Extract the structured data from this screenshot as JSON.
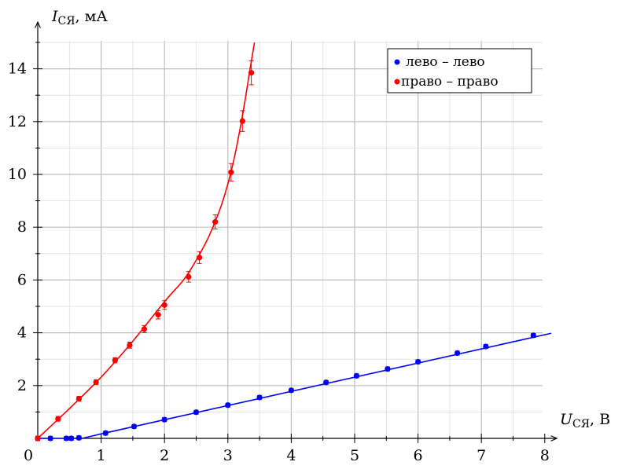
{
  "chart_data": {
    "type": "scatter",
    "xlabel": "U",
    "xlabel_sub": "СЯ",
    "xlabel_unit": ", В",
    "ylabel": "I",
    "ylabel_sub": "СЯ",
    "ylabel_unit": ", мА",
    "origin_label": "0",
    "xlim": [
      0,
      8.1
    ],
    "ylim": [
      0,
      15
    ],
    "x_ticks": [
      1,
      2,
      3,
      4,
      5,
      6,
      7,
      8
    ],
    "x_tick_labels": [
      "1",
      "2",
      "3",
      "4",
      "5",
      "6",
      "7",
      "8"
    ],
    "y_ticks": [
      2,
      4,
      6,
      8,
      10,
      12,
      14
    ],
    "y_tick_labels": [
      "2",
      "4",
      "6",
      "8",
      "10",
      "12",
      "14"
    ],
    "grid": true,
    "legend_position": "top-right",
    "series": [
      {
        "name": "лево – лево",
        "color": "#0000ff",
        "points": [
          {
            "x": 0.0,
            "y": 0.0
          },
          {
            "x": 0.2,
            "y": 0.0
          },
          {
            "x": 0.45,
            "y": 0.0
          },
          {
            "x": 0.53,
            "y": 0.0
          },
          {
            "x": 0.65,
            "y": 0.02
          },
          {
            "x": 1.07,
            "y": 0.2
          },
          {
            "x": 1.52,
            "y": 0.45
          },
          {
            "x": 2.0,
            "y": 0.71
          },
          {
            "x": 2.5,
            "y": 0.99
          },
          {
            "x": 3.0,
            "y": 1.26
          },
          {
            "x": 3.5,
            "y": 1.55
          },
          {
            "x": 4.0,
            "y": 1.82
          },
          {
            "x": 4.55,
            "y": 2.12
          },
          {
            "x": 5.03,
            "y": 2.37
          },
          {
            "x": 5.52,
            "y": 2.63
          },
          {
            "x": 6.0,
            "y": 2.9
          },
          {
            "x": 6.62,
            "y": 3.23
          },
          {
            "x": 7.07,
            "y": 3.48
          },
          {
            "x": 7.82,
            "y": 3.9
          }
        ],
        "fit": [
          {
            "x": 0.0,
            "y": 0.0
          },
          {
            "x": 0.7,
            "y": 0.0
          },
          {
            "x": 1.0,
            "y": 0.17
          },
          {
            "x": 8.1,
            "y": 3.98
          }
        ]
      },
      {
        "name": "право – право",
        "color": "#ff0000",
        "points": [
          {
            "x": 0.0,
            "y": 0.0
          },
          {
            "x": 0.32,
            "y": 0.74
          },
          {
            "x": 0.65,
            "y": 1.5
          },
          {
            "x": 0.92,
            "y": 2.13
          },
          {
            "x": 1.22,
            "y": 2.96
          },
          {
            "x": 1.45,
            "y": 3.53
          },
          {
            "x": 1.68,
            "y": 4.14
          },
          {
            "x": 1.9,
            "y": 4.68
          },
          {
            "x": 2.0,
            "y": 5.05
          },
          {
            "x": 2.38,
            "y": 6.12
          },
          {
            "x": 2.55,
            "y": 6.85
          },
          {
            "x": 2.8,
            "y": 8.2
          },
          {
            "x": 3.05,
            "y": 10.08
          },
          {
            "x": 3.23,
            "y": 12.02
          },
          {
            "x": 3.37,
            "y": 13.85
          }
        ],
        "fit": [
          {
            "x": 0.0,
            "y": 0.0
          },
          {
            "x": 0.5,
            "y": 1.13
          },
          {
            "x": 1.0,
            "y": 2.32
          },
          {
            "x": 1.5,
            "y": 3.68
          },
          {
            "x": 2.0,
            "y": 5.18
          },
          {
            "x": 2.3,
            "y": 6.0
          },
          {
            "x": 2.5,
            "y": 6.75
          },
          {
            "x": 2.7,
            "y": 7.65
          },
          {
            "x": 2.9,
            "y": 8.85
          },
          {
            "x": 3.05,
            "y": 10.1
          },
          {
            "x": 3.15,
            "y": 11.2
          },
          {
            "x": 3.25,
            "y": 12.5
          },
          {
            "x": 3.35,
            "y": 14.0
          },
          {
            "x": 3.42,
            "y": 15.0
          }
        ]
      }
    ]
  }
}
